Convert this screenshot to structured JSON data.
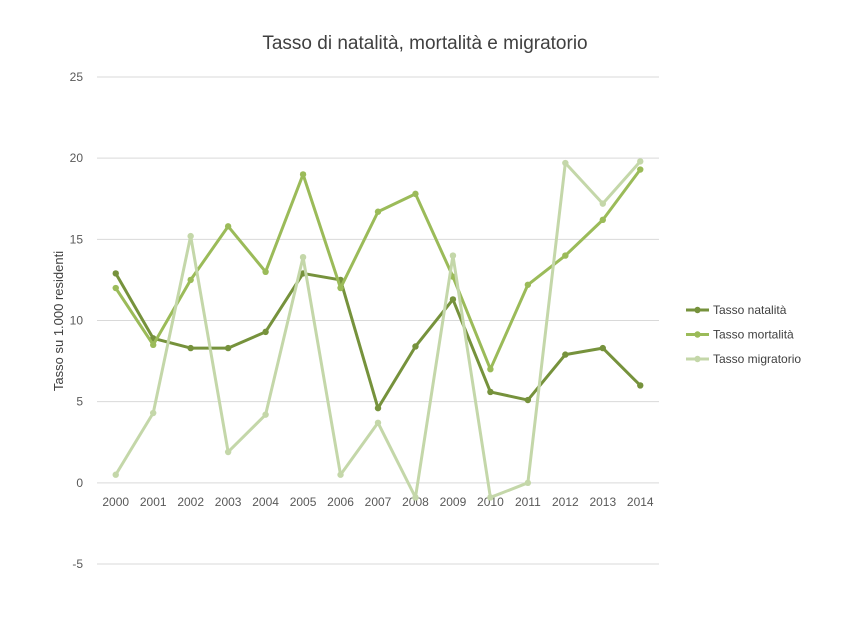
{
  "chart_data": {
    "type": "line",
    "title": "Tasso di natalità, mortalità e migratorio",
    "xlabel": "",
    "ylabel": "Tasso su 1.000 residenti",
    "x": [
      "2000",
      "2001",
      "2002",
      "2003",
      "2004",
      "2005",
      "2006",
      "2007",
      "2008",
      "2009",
      "2010",
      "2011",
      "2012",
      "2013",
      "2014"
    ],
    "ylim": [
      -5,
      25
    ],
    "yticks": [
      "-5",
      "0",
      "5",
      "10",
      "15",
      "20",
      "25"
    ],
    "grid": true,
    "legend_position": "right",
    "series": [
      {
        "name": "Tasso natalità",
        "color": "#76923c",
        "values": [
          12.9,
          8.9,
          8.3,
          8.3,
          9.3,
          12.9,
          12.5,
          4.6,
          8.4,
          11.3,
          5.6,
          5.1,
          7.9,
          8.3,
          6.0
        ]
      },
      {
        "name": "Tasso mortalità",
        "color": "#9bbb59",
        "values": [
          12.0,
          8.5,
          12.5,
          15.8,
          13.0,
          19.0,
          12.0,
          16.7,
          17.8,
          12.7,
          7.0,
          12.2,
          14.0,
          16.2,
          19.3
        ]
      },
      {
        "name": "Tasso migratorio",
        "color": "#c4d7a9",
        "values": [
          0.5,
          4.3,
          15.2,
          1.9,
          4.2,
          13.9,
          0.5,
          3.7,
          -0.9,
          14.0,
          -0.9,
          0.0,
          19.7,
          17.2,
          19.8
        ]
      }
    ]
  }
}
